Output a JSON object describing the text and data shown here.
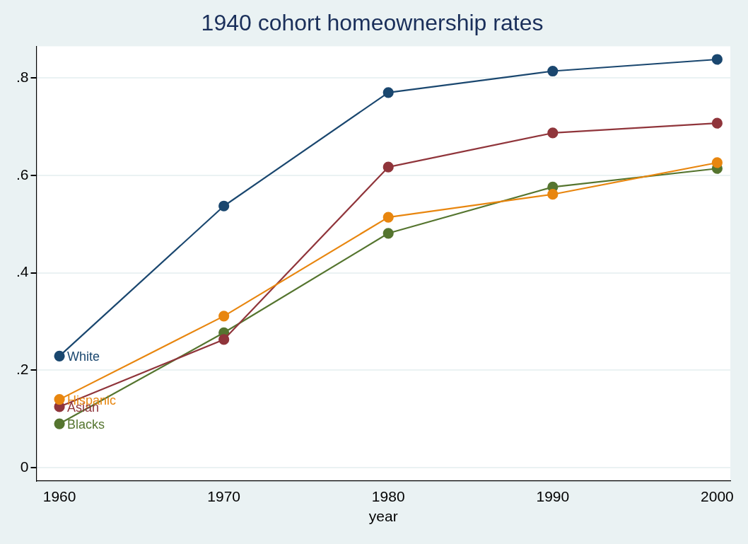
{
  "chart_data": {
    "type": "line",
    "title": "1940 cohort homeownership rates",
    "xlabel": "year",
    "x": [
      1960,
      1970,
      1980,
      1990,
      2000
    ],
    "xlim": [
      1958.6,
      2000.8
    ],
    "xticks": [
      1960,
      1970,
      1980,
      1990,
      2000
    ],
    "ylim": [
      -0.027,
      0.865
    ],
    "yticks": [
      {
        "value": 0,
        "label": "0"
      },
      {
        "value": 0.2,
        "label": ".2"
      },
      {
        "value": 0.4,
        "label": ".4"
      },
      {
        "value": 0.6,
        "label": ".6"
      },
      {
        "value": 0.8,
        "label": ".8"
      }
    ],
    "grid": "y",
    "legend": false,
    "marker": "circle",
    "line_style": "solid",
    "series": [
      {
        "name": "White",
        "color": "#1a476f",
        "values": [
          0.229,
          0.537,
          0.77,
          0.814,
          0.838
        ]
      },
      {
        "name": "Hispanic",
        "color": "#e8860f",
        "values": [
          0.14,
          0.311,
          0.514,
          0.561,
          0.626
        ]
      },
      {
        "name": "Asian",
        "color": "#90353b",
        "values": [
          0.125,
          0.263,
          0.617,
          0.687,
          0.707
        ]
      },
      {
        "name": "Blacks",
        "color": "#55752f",
        "values": [
          0.09,
          0.277,
          0.481,
          0.576,
          0.614
        ]
      }
    ]
  }
}
